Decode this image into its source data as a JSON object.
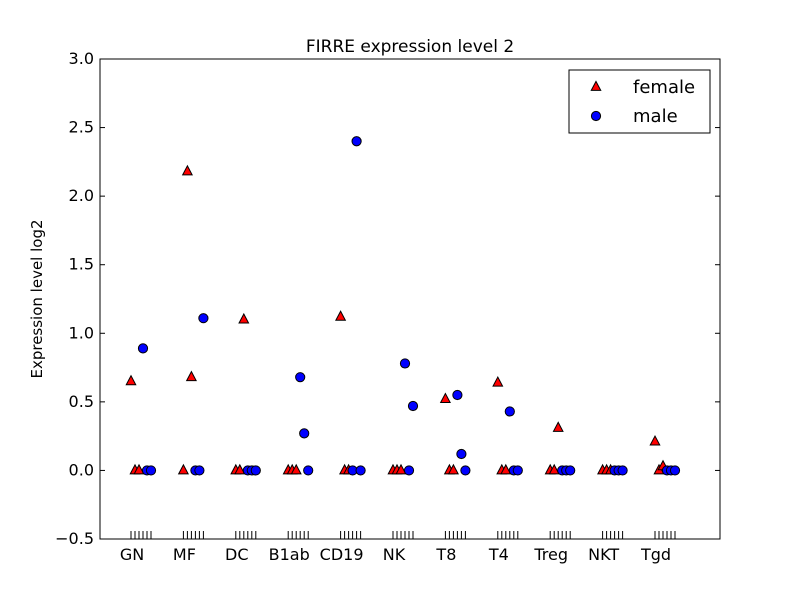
{
  "chart_data": {
    "type": "scatter",
    "title": "FIRRE expression level 2",
    "xlabel": "",
    "ylabel": "Expression level log2",
    "ylim": [
      -0.5,
      3.0
    ],
    "yticks": [
      "−0.5",
      "0.0",
      "0.5",
      "1.0",
      "1.5",
      "2.0",
      "2.5",
      "3.0"
    ],
    "ytick_values": [
      -0.5,
      0.0,
      0.5,
      1.0,
      1.5,
      2.0,
      2.5,
      3.0
    ],
    "grid": false,
    "legend_position": "top-right",
    "categories": [
      "GN",
      "MF",
      "DC",
      "B1ab",
      "CD19",
      "NK",
      "T8",
      "T4",
      "Treg",
      "NKT",
      "Tgd"
    ],
    "series": [
      {
        "name": "female",
        "marker": "triangle",
        "color": "#ff0000",
        "values": [
          [
            0.65,
            0.0,
            0.0
          ],
          [
            0.0,
            2.18,
            0.68
          ],
          [
            0.0,
            0.0,
            1.1
          ],
          [
            0.0,
            0.0,
            0.0
          ],
          [
            1.12,
            0.0,
            0.0
          ],
          [
            0.0,
            0.0,
            0.0
          ],
          [
            0.52,
            0.0,
            0.0
          ],
          [
            0.64,
            0.0,
            0.0
          ],
          [
            0.0,
            0.0,
            0.31
          ],
          [
            0.0,
            0.0,
            0.0
          ],
          [
            0.21,
            0.0,
            0.03
          ]
        ]
      },
      {
        "name": "male",
        "marker": "circle",
        "color": "#0000ff",
        "values": [
          [
            0.89,
            0.0,
            0.0
          ],
          [
            0.0,
            0.0,
            1.11
          ],
          [
            0.0,
            0.0,
            0.0
          ],
          [
            0.68,
            0.27,
            0.0
          ],
          [
            0.0,
            2.4,
            0.0
          ],
          [
            0.78,
            0.0,
            0.47
          ],
          [
            0.55,
            0.12,
            0.0
          ],
          [
            0.43,
            0.0,
            0.0
          ],
          [
            0.0,
            0.0,
            0.0
          ],
          [
            0.0,
            0.0,
            0.0
          ],
          [
            0.0,
            0.0,
            0.0
          ]
        ]
      }
    ]
  }
}
